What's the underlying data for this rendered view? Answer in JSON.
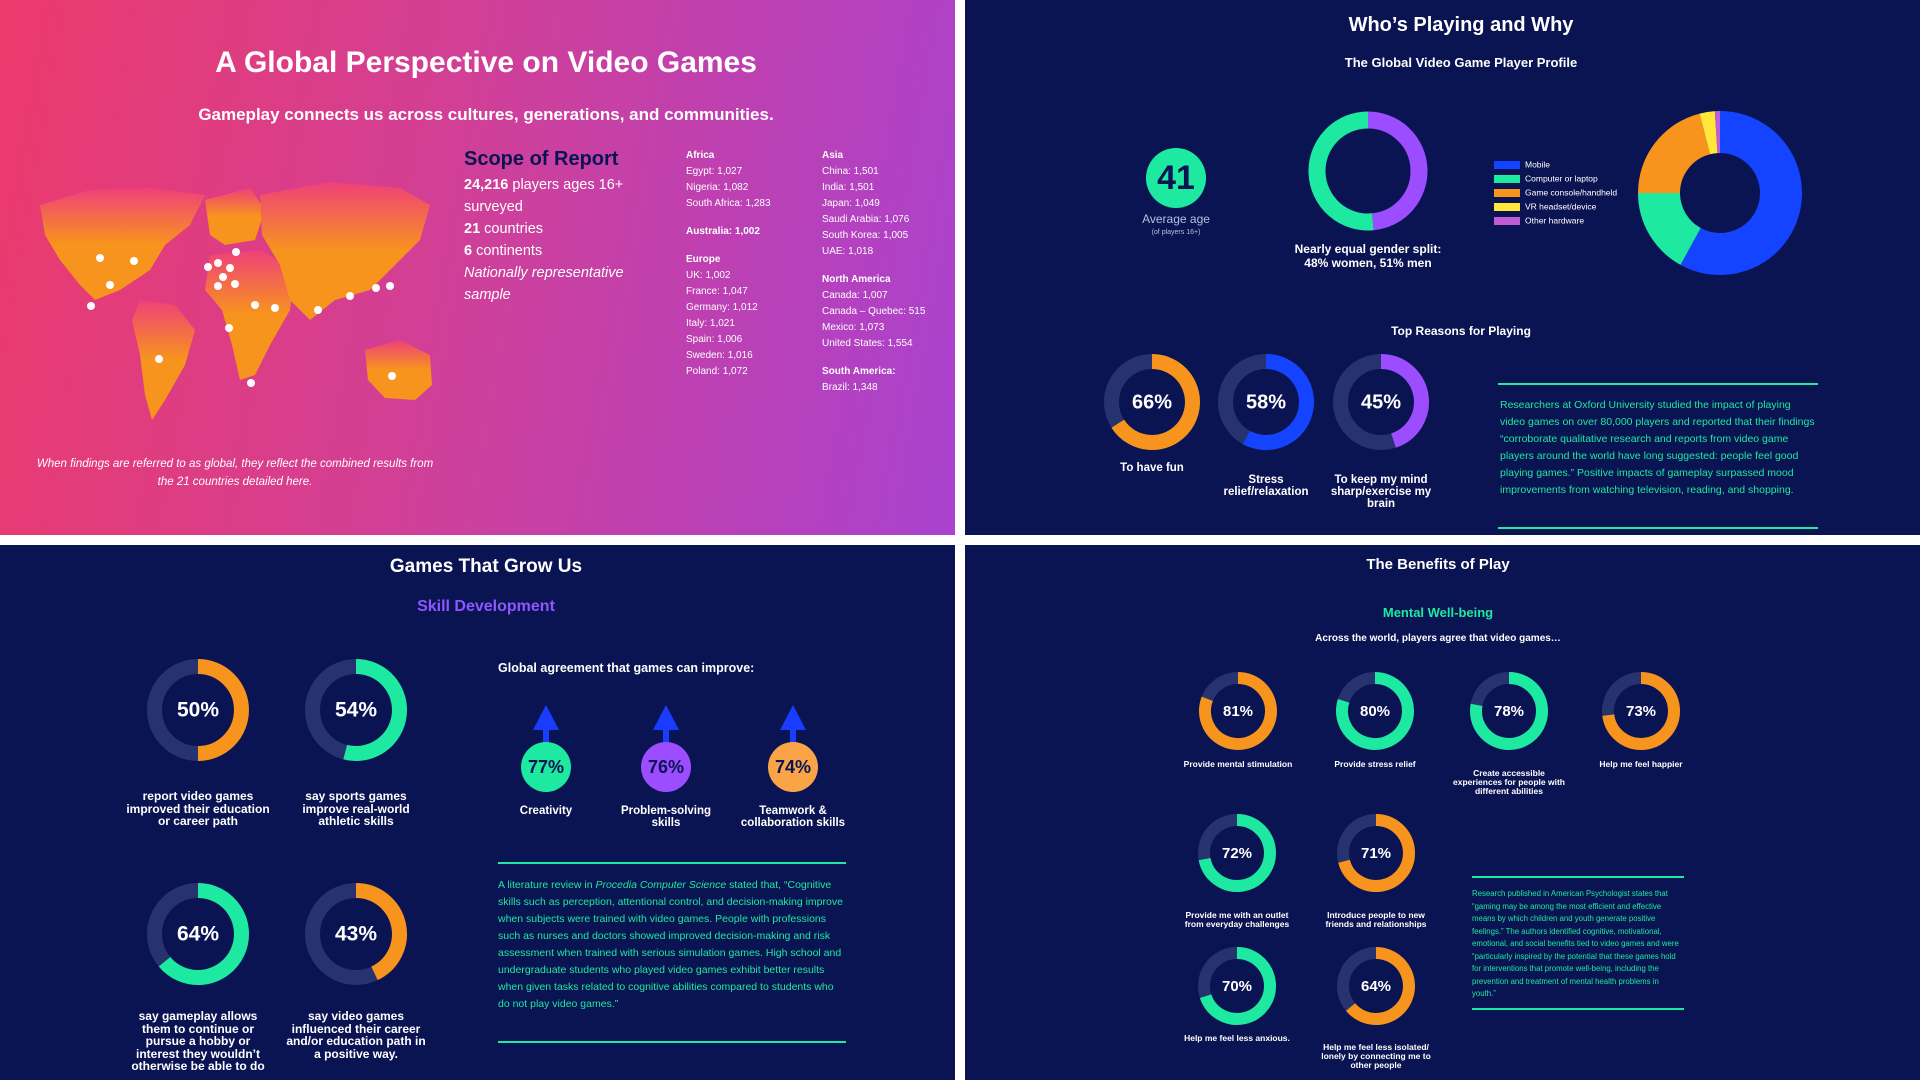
{
  "panel1": {
    "title": "A Global Perspective on Video Games",
    "subtitle": "Gameplay connects us across cultures, generations, and communities.",
    "scope": {
      "heading": "Scope of Report",
      "items": [
        {
          "bold": "24,216",
          "text": "players ages 16+ surveyed"
        },
        {
          "bold": "21",
          "text": "countries"
        },
        {
          "bold": "6",
          "text": "continents"
        }
      ],
      "note": "Nationally representative sample"
    },
    "regions": [
      [
        {
          "heading": "Africa",
          "entries": [
            "Egypt: 1,027",
            "Nigeria: 1,082",
            "South Africa: 1,283"
          ]
        },
        {
          "heading": "Australia: 1,002",
          "entries": []
        },
        {
          "heading": "Europe",
          "entries": [
            "UK: 1,002",
            "France: 1,047",
            "Germany: 1,012",
            "Italy: 1,021",
            "Spain: 1,006",
            "Sweden: 1,016",
            "Poland: 1,072"
          ]
        }
      ],
      [
        {
          "heading": "Asia",
          "entries": [
            "China: 1,501",
            "India: 1,501",
            "Japan: 1,049",
            "Saudi Arabia: 1,076",
            "South Korea: 1,005",
            "UAE: 1,018"
          ]
        },
        {
          "heading": "North America",
          "entries": [
            "Canada: 1,007",
            "Canada – Quebec: 515",
            "Mexico: 1,073",
            "United States: 1,554"
          ]
        },
        {
          "heading": "South America:",
          "entries": [
            "Brazil: 1,348"
          ]
        }
      ]
    ],
    "footnote": "When findings are referred to as global, they reflect the combined results from the 21 countries detailed here."
  },
  "panel2": {
    "title": "Who’s Playing and Why",
    "subtitle": "The Global Video Game Player Profile",
    "age": {
      "value": "41",
      "label": "Average age",
      "note": "(of players 16+)"
    },
    "gender": {
      "caption": "Nearly equal gender split:",
      "detail": "48% women, 51% men",
      "segments": [
        {
          "value": 48,
          "color": "#9b4dff"
        },
        {
          "value": 51,
          "color": "#1de9a0"
        }
      ]
    },
    "devices": [
      {
        "name": "Mobile",
        "color": "#1444ff",
        "value": 58
      },
      {
        "name": "Computer or laptop",
        "color": "#1de9a0",
        "value": 17
      },
      {
        "name": "Game console/handheld",
        "color": "#f7941d",
        "value": 21
      },
      {
        "name": "VR headset/device",
        "color": "#ffe83a",
        "value": 3
      },
      {
        "name": "Other hardware",
        "color": "#c05cd6",
        "value": 1
      }
    ],
    "reasons": {
      "heading": "Top Reasons for Playing",
      "items": [
        {
          "value": 66,
          "label": "66%",
          "text": "To have fun",
          "color": "#f7941d"
        },
        {
          "value": 58,
          "label": "58%",
          "text": "Stress relief/relaxation",
          "color": "#1444ff"
        },
        {
          "value": 45,
          "label": "45%",
          "text": "To keep my mind sharp/exercise my brain",
          "color": "#9b4dff"
        }
      ]
    },
    "quote": "Researchers at Oxford University studied the impact of playing video games on over 80,000 players and reported that their findings “corroborate qualitative research and reports from video game players around the world have long suggested: people feel good playing games.” Positive impacts of gameplay surpassed mood improvements from watching television, reading, and shopping."
  },
  "panel3": {
    "title": "Games That Grow Us",
    "subtitle": "Skill Development",
    "items": [
      {
        "value": 50,
        "label": "50%",
        "text": "report video games improved their education or career path",
        "color": "#f7941d"
      },
      {
        "value": 54,
        "label": "54%",
        "text": "say sports games improve real-world athletic skills",
        "color": "#1de9a0"
      },
      {
        "value": 64,
        "label": "64%",
        "text": "say gameplay allows them to continue or pursue a hobby or interest they wouldn’t otherwise be able to do",
        "color": "#1de9a0"
      },
      {
        "value": 43,
        "label": "43%",
        "text": "say video games influenced their career and/or education path in a positive way.",
        "color": "#f7941d"
      }
    ],
    "improve_heading": "Global agreement that games can improve:",
    "improve": [
      {
        "label": "77%",
        "text": "Creativity",
        "color": "#1de9a0"
      },
      {
        "label": "76%",
        "text": "Problem-solving skills",
        "color": "#9b4dff"
      },
      {
        "label": "74%",
        "text": "Teamwork & collaboration skills",
        "color": "#f9a547"
      }
    ],
    "quote": [
      "A literature review in",
      "Procedia Computer Science",
      "stated that, “Cognitive skills such as perception, attentional control, and decision-making improve when subjects were trained with video games. People with professions such as nurses and doctors showed improved decision-making and risk assessment when trained with serious simulation games. High school and undergraduate students who played video games exhibit better results when given tasks related to cognitive abilities compared to students who do not play video games.”"
    ]
  },
  "panel4": {
    "title": "The Benefits of Play",
    "subtitle": "Mental Well-being",
    "intro": "Across the world, players agree that video games…",
    "items": [
      {
        "value": 81,
        "label": "81%",
        "text": "Provide mental stimulation",
        "color": "#f7941d"
      },
      {
        "value": 80,
        "label": "80%",
        "text": "Provide stress relief",
        "color": "#1de9a0"
      },
      {
        "value": 78,
        "label": "78%",
        "text": "Create accessible experiences for people with different abilities",
        "color": "#1de9a0"
      },
      {
        "value": 73,
        "label": "73%",
        "text": "Help me feel happier",
        "color": "#f7941d"
      },
      {
        "value": 72,
        "label": "72%",
        "text": "Provide me with an outlet from everyday challenges",
        "color": "#1de9a0"
      },
      {
        "value": 71,
        "label": "71%",
        "text": "Introduce people to new friends and relationships",
        "color": "#f7941d"
      },
      {
        "value": 70,
        "label": "70%",
        "text": "Help me feel less anxious.",
        "color": "#1de9a0"
      },
      {
        "value": 64,
        "label": "64%",
        "text": "Help me feel less isolated/ lonely by connecting me to other people",
        "color": "#f7941d"
      }
    ],
    "quote": "Research published in American Psychologist states that “gaming may be among the most efficient and effective means by which children and youth generate positive feelings.” The authors identified cognitive, motivational, emotional, and social benefits tied to video games and were “particularly inspired by the potential that these games hold for interventions that promote well-being, including the prevention and treatment of mental health problems in youth.”"
  }
}
